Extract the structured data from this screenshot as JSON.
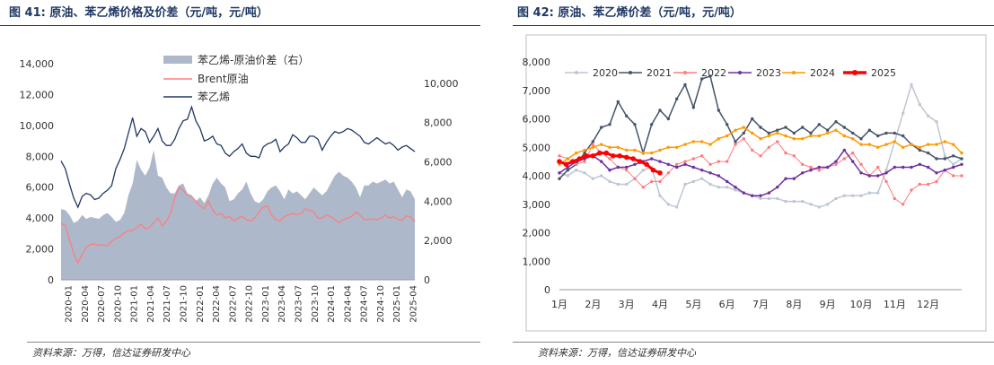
{
  "colors": {
    "title": "#1f3864",
    "spread": "#adb9ca",
    "brent": "#ff7c80",
    "styrene": "#203864"
  },
  "chart_data": [
    {
      "type": "area+line",
      "figure_label": "图 41:",
      "title": "原油、苯乙烯价格及价差（元/吨，元/吨）",
      "source": "资料来源：万得，信达证券研发中心",
      "x_ticks": [
        "2020-01",
        "2020-04",
        "2020-07",
        "2020-10",
        "2021-01",
        "2021-04",
        "2021-07",
        "2021-10",
        "2022-01",
        "2022-04",
        "2022-07",
        "2022-10",
        "2023-01",
        "2023-04",
        "2023-07",
        "2023-10",
        "2024-01",
        "2024-04",
        "2024-07",
        "2024-10",
        "2025-01",
        "2025-04"
      ],
      "y_left": {
        "range": [
          0,
          14000
        ],
        "ticks": [
          "0",
          "2,000",
          "4,000",
          "6,000",
          "8,000",
          "10,000",
          "12,000",
          "14,000"
        ]
      },
      "y_right": {
        "range": [
          0,
          11000
        ],
        "ticks": [
          "0",
          "2,000",
          "4,000",
          "6,000",
          "8,000",
          "10,000"
        ]
      },
      "series": [
        {
          "name": "苯乙烯-原油价差（右）",
          "axis": "right",
          "style": "area",
          "color": "#adb9ca",
          "values": [
            3600,
            3550,
            3300,
            2900,
            3000,
            3300,
            3100,
            3200,
            3150,
            3100,
            3300,
            3400,
            3200,
            2950,
            3050,
            3400,
            4300,
            4900,
            6100,
            5600,
            5300,
            5700,
            6600,
            5300,
            5200,
            4700,
            4400,
            4400,
            4800,
            4900,
            4400,
            4300,
            4000,
            4200,
            3900,
            4300,
            4900,
            5200,
            4900,
            4700,
            4000,
            4100,
            4400,
            4600,
            5000,
            4400,
            4000,
            3900,
            4100,
            4500,
            4700,
            4800,
            4500,
            4100,
            4600,
            4400,
            4500,
            4300,
            4100,
            4400,
            4700,
            4500,
            4300,
            4500,
            4900,
            5300,
            5500,
            5300,
            5200,
            5000,
            4700,
            4200,
            4800,
            4800,
            5000,
            4900,
            5000,
            5100,
            4900,
            5000,
            4600,
            4200,
            4600,
            4500,
            4100
          ]
        },
        {
          "name": "Brent原油",
          "axis": "left",
          "style": "line",
          "color": "#ff7c80",
          "values": [
            3650,
            3500,
            2600,
            1700,
            1100,
            1650,
            2100,
            2300,
            2300,
            2250,
            2250,
            2200,
            2500,
            2700,
            2800,
            3050,
            3150,
            3200,
            3400,
            3600,
            3300,
            3400,
            3700,
            4000,
            3500,
            3800,
            4300,
            5300,
            6000,
            5800,
            5500,
            5400,
            5100,
            4800,
            4600,
            5100,
            4500,
            4200,
            4300,
            4000,
            4100,
            3800,
            4000,
            4100,
            3900,
            3800,
            4000,
            4400,
            4700,
            4800,
            4200,
            3900,
            3800,
            4100,
            4200,
            4300,
            4200,
            4300,
            4600,
            4500,
            4400,
            4000,
            4000,
            4200,
            4100,
            3900,
            3700,
            3900,
            4000,
            4100,
            4400,
            4200,
            3900,
            3900,
            3950,
            3900,
            4000,
            4200,
            4000,
            4100,
            3900,
            3850,
            4150,
            4050,
            3750
          ]
        },
        {
          "name": "苯乙烯",
          "axis": "left",
          "style": "line",
          "color": "#203864",
          "values": [
            7700,
            7200,
            6200,
            5300,
            4700,
            5400,
            5600,
            5500,
            5200,
            5300,
            5600,
            5800,
            6100,
            7200,
            7800,
            8500,
            9500,
            10500,
            9300,
            9800,
            9600,
            8900,
            9300,
            9800,
            9000,
            8700,
            8700,
            9100,
            9800,
            10300,
            10400,
            11200,
            10300,
            9800,
            9000,
            9100,
            9300,
            8800,
            8700,
            8200,
            8000,
            8300,
            8500,
            8800,
            8200,
            8000,
            8000,
            7900,
            8600,
            8800,
            8900,
            9100,
            8300,
            8600,
            8800,
            9400,
            9200,
            8900,
            8900,
            9300,
            9300,
            9100,
            8400,
            8900,
            9300,
            9600,
            9500,
            9600,
            9800,
            9700,
            9500,
            9300,
            8900,
            8800,
            9000,
            9200,
            9000,
            8800,
            8900,
            8700,
            8400,
            8600,
            8700,
            8500,
            8300
          ]
        }
      ]
    },
    {
      "type": "line",
      "figure_label": "图 42:",
      "title": "原油、苯乙烯价差（元/吨，元/吨）",
      "source": "资料来源：万得，信达证券研发中心",
      "x_range": [
        1,
        13
      ],
      "x_ticks": [
        "1月",
        "2月",
        "3月",
        "4月",
        "5月",
        "6月",
        "7月",
        "8月",
        "9月",
        "10月",
        "11月",
        "12月"
      ],
      "y_range": [
        0,
        8000
      ],
      "y_ticks": [
        "0",
        "1,000",
        "2,000",
        "3,000",
        "4,000",
        "5,000",
        "6,000",
        "7,000",
        "8,000"
      ],
      "series": [
        {
          "name": "2020",
          "color": "#bfc6d4",
          "marker": "dot",
          "width": 1.5,
          "x": [
            1,
            1.25,
            1.5,
            1.75,
            2,
            2.25,
            2.5,
            2.75,
            3,
            3.25,
            3.5,
            3.75,
            4,
            4.25,
            4.5,
            4.75,
            5,
            5.25,
            5.5,
            5.75,
            6,
            6.25,
            6.5,
            6.75,
            7,
            7.25,
            7.5,
            7.75,
            8,
            8.25,
            8.5,
            8.75,
            9,
            9.25,
            9.5,
            9.75,
            10,
            10.25,
            10.5,
            10.75,
            11,
            11.25,
            11.5,
            11.75,
            12,
            12.25,
            12.5,
            12.75,
            13
          ],
          "y": [
            4100,
            4000,
            4200,
            4100,
            3900,
            4000,
            3800,
            3700,
            3700,
            3900,
            4200,
            4300,
            3300,
            3000,
            2900,
            3700,
            3800,
            3900,
            3700,
            3600,
            3600,
            3500,
            3400,
            3300,
            3200,
            3200,
            3200,
            3100,
            3100,
            3100,
            3000,
            2900,
            3000,
            3200,
            3300,
            3300,
            3300,
            3400,
            3400,
            4200,
            5200,
            6200,
            7200,
            6500,
            6100,
            5900,
            4700,
            4400,
            4600
          ]
        },
        {
          "name": "2021",
          "color": "#44546a",
          "marker": "dot",
          "width": 1.5,
          "x": [
            1,
            1.25,
            1.5,
            1.75,
            2,
            2.25,
            2.5,
            2.75,
            3,
            3.25,
            3.5,
            3.75,
            4,
            4.25,
            4.5,
            4.75,
            5,
            5.25,
            5.5,
            5.75,
            6,
            6.25,
            6.5,
            6.75,
            7,
            7.25,
            7.5,
            7.75,
            8,
            8.25,
            8.5,
            8.75,
            9,
            9.25,
            9.5,
            9.75,
            10,
            10.25,
            10.5,
            10.75,
            11,
            11.25,
            11.5,
            11.75,
            12,
            12.25,
            12.5,
            12.75,
            13
          ],
          "y": [
            3900,
            4200,
            4400,
            4800,
            5200,
            5700,
            5800,
            6600,
            6100,
            5800,
            4800,
            5800,
            6300,
            6000,
            6700,
            7200,
            6400,
            7400,
            7500,
            6300,
            5800,
            5200,
            5500,
            6000,
            5700,
            5500,
            5600,
            5700,
            5500,
            5700,
            5500,
            5800,
            5600,
            5900,
            5700,
            5500,
            5300,
            5600,
            5400,
            5500,
            5500,
            5400,
            5100,
            4900,
            4800,
            4600,
            4600,
            4700,
            4600
          ]
        },
        {
          "name": "2022",
          "color": "#ff7c80",
          "marker": "dot",
          "width": 1,
          "x": [
            1,
            1.25,
            1.5,
            1.75,
            2,
            2.25,
            2.5,
            2.75,
            3,
            3.25,
            3.5,
            3.75,
            4,
            4.25,
            4.5,
            4.75,
            5,
            5.25,
            5.5,
            5.75,
            6,
            6.25,
            6.5,
            6.75,
            7,
            7.25,
            7.5,
            7.75,
            8,
            8.25,
            8.5,
            8.75,
            9,
            9.25,
            9.5,
            9.75,
            10,
            10.25,
            10.5,
            10.75,
            11,
            11.25,
            11.5,
            11.75,
            12,
            12.25,
            12.5,
            12.75,
            13
          ],
          "y": [
            4700,
            4600,
            4400,
            4500,
            5100,
            4800,
            4600,
            4300,
            4200,
            3900,
            3600,
            3800,
            3800,
            4100,
            4400,
            4500,
            4600,
            4700,
            4400,
            4500,
            4500,
            5100,
            5300,
            4900,
            4700,
            5000,
            5200,
            4800,
            4700,
            4400,
            4300,
            4200,
            4300,
            4400,
            4600,
            4800,
            4400,
            4000,
            4300,
            3800,
            3200,
            3000,
            3500,
            3700,
            3700,
            3800,
            4200,
            4000,
            4000
          ]
        },
        {
          "name": "2023",
          "color": "#7030a0",
          "marker": "dot",
          "width": 1.5,
          "x": [
            1,
            1.25,
            1.5,
            1.75,
            2,
            2.25,
            2.5,
            2.75,
            3,
            3.25,
            3.5,
            3.75,
            4,
            4.25,
            4.5,
            4.75,
            5,
            5.25,
            5.5,
            5.75,
            6,
            6.25,
            6.5,
            6.75,
            7,
            7.25,
            7.5,
            7.75,
            8,
            8.25,
            8.5,
            8.75,
            9,
            9.25,
            9.5,
            9.75,
            10,
            10.25,
            10.5,
            10.75,
            11,
            11.25,
            11.5,
            11.75,
            12,
            12.25,
            12.5,
            12.75,
            13
          ],
          "y": [
            4100,
            4300,
            4500,
            4600,
            4700,
            4500,
            4200,
            4300,
            4300,
            4400,
            4500,
            4600,
            4500,
            4400,
            4300,
            4400,
            4300,
            4200,
            4100,
            4000,
            3800,
            3600,
            3400,
            3300,
            3300,
            3400,
            3600,
            3900,
            3900,
            4100,
            4200,
            4300,
            4300,
            4500,
            4900,
            4500,
            4100,
            4000,
            4000,
            4100,
            4300,
            4300,
            4300,
            4400,
            4300,
            4100,
            4200,
            4300,
            4400
          ]
        },
        {
          "name": "2024",
          "color": "#ff9900",
          "marker": "dot",
          "width": 1.5,
          "x": [
            1,
            1.25,
            1.5,
            1.75,
            2,
            2.25,
            2.5,
            2.75,
            3,
            3.25,
            3.5,
            3.75,
            4,
            4.25,
            4.5,
            4.75,
            5,
            5.25,
            5.5,
            5.75,
            6,
            6.25,
            6.5,
            6.75,
            7,
            7.25,
            7.5,
            7.75,
            8,
            8.25,
            8.5,
            8.75,
            9,
            9.25,
            9.5,
            9.75,
            10,
            10.25,
            10.5,
            10.75,
            11,
            11.25,
            11.5,
            11.75,
            12,
            12.25,
            12.5,
            12.75,
            13
          ],
          "y": [
            4400,
            4600,
            4800,
            4900,
            5000,
            5100,
            5000,
            5000,
            4900,
            4900,
            4800,
            4800,
            4900,
            5000,
            5000,
            5100,
            5200,
            5200,
            5100,
            5300,
            5400,
            5600,
            5700,
            5500,
            5300,
            5400,
            5500,
            5400,
            5300,
            5300,
            5400,
            5400,
            5500,
            5600,
            5400,
            5300,
            5100,
            5100,
            5000,
            5100,
            5200,
            5000,
            5100,
            5000,
            5100,
            5100,
            5200,
            5100,
            4800
          ]
        },
        {
          "name": "2025",
          "color": "#ff0000",
          "marker": "dot",
          "width": 3,
          "x": [
            1,
            1.2,
            1.4,
            1.6,
            1.8,
            2,
            2.2,
            2.4,
            2.6,
            2.8,
            3,
            3.2,
            3.4,
            3.6,
            3.8,
            4
          ],
          "y": [
            4500,
            4400,
            4500,
            4600,
            4700,
            4700,
            4800,
            4800,
            4700,
            4700,
            4650,
            4600,
            4500,
            4400,
            4200,
            4100
          ]
        }
      ]
    }
  ]
}
